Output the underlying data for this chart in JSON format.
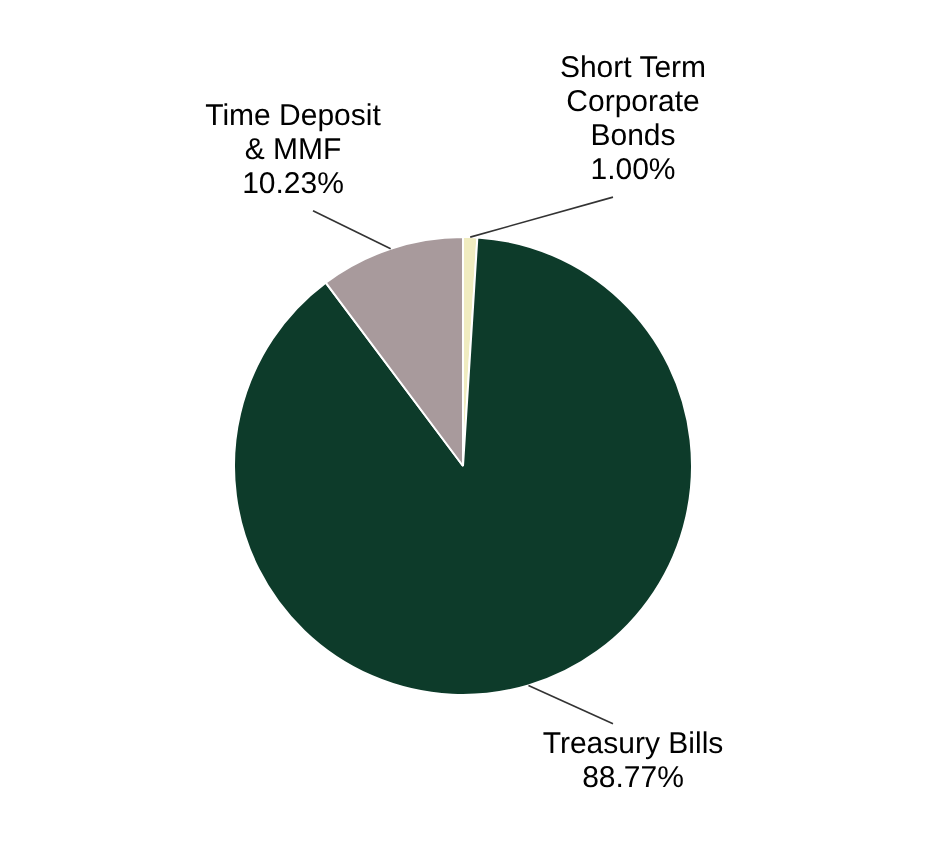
{
  "chart_data": {
    "type": "pie",
    "categories": [
      "Short Term Corporate Bonds",
      "Treasury Bills",
      "Time Deposit & MMF"
    ],
    "values": [
      1.0,
      88.77,
      10.23
    ],
    "colors": [
      "#f0ecc0",
      "#0d3b2a",
      "#a89a9c"
    ],
    "value_labels": [
      "1.00%",
      "88.77%",
      "10.23%"
    ],
    "legend": false
  }
}
